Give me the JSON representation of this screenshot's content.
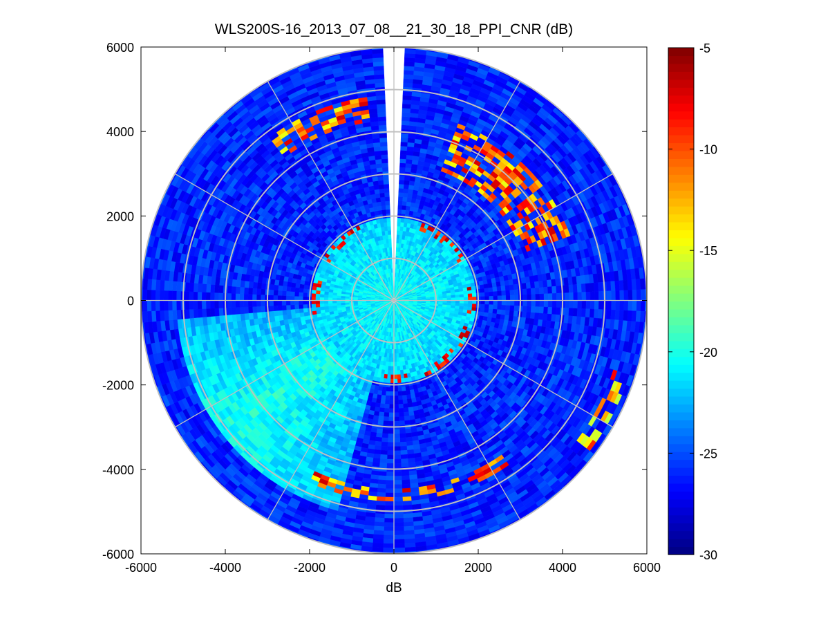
{
  "chart_data": {
    "type": "heatmap",
    "subtype": "polar-ppi-scan",
    "title": "WLS200S-16_2013_07_08__21_30_18_PPI_CNR (dB)",
    "xlabel": "dB",
    "ylabel": "",
    "xlim": [
      -6000,
      6000
    ],
    "ylim": [
      -6000,
      6000
    ],
    "x_ticks": [
      -6000,
      -4000,
      -2000,
      0,
      2000,
      4000,
      6000
    ],
    "y_ticks": [
      -6000,
      -4000,
      -2000,
      0,
      2000,
      4000,
      6000
    ],
    "x_tick_labels": [
      "-6000",
      "-4000",
      "-2000",
      "0",
      "2000",
      "4000",
      "6000"
    ],
    "y_tick_labels": [
      "-6000",
      "-4000",
      "-2000",
      "0",
      "2000",
      "4000",
      "6000"
    ],
    "max_range": 6000,
    "range_rings": [
      1000,
      2000,
      3000,
      4000,
      5000,
      6000
    ],
    "azimuth_spokes_deg": [
      0,
      30,
      60,
      90,
      120,
      150,
      180,
      210,
      240,
      270,
      300,
      330
    ],
    "gap_azimuth_deg": [
      -3.5,
      3.5
    ],
    "colormap": "jet",
    "clim": [
      -30,
      -5
    ],
    "colorbar_ticks": [
      -5,
      -10,
      -15,
      -20,
      -25,
      -30
    ],
    "colorbar_tick_labels": [
      "-5",
      "-10",
      "-15",
      "-20",
      "-25",
      "-30"
    ],
    "grid": true,
    "features": [
      {
        "name": "near-field",
        "range_km": [
          0,
          2.0
        ],
        "cnr_db": -20.5
      },
      {
        "name": "background",
        "range_km": [
          2.0,
          6.0
        ],
        "cnr_db": -26.0
      },
      {
        "name": "southwest-plume",
        "azimuth_deg": [
          195,
          265
        ],
        "range_km": [
          2.5,
          4.8
        ],
        "cnr_db": -19.0
      },
      {
        "name": "north-arc",
        "azimuth_deg": [
          322,
          352
        ],
        "range_km": [
          4.3,
          4.9
        ],
        "cnr_db": -7.0
      },
      {
        "name": "ring-2km-echoes",
        "range_km": [
          1.8,
          2.0
        ],
        "cnr_db": -6.0
      },
      {
        "name": "east-arc",
        "azimuth_deg": [
          20,
          70
        ],
        "range_km": [
          3.3,
          4.5
        ],
        "cnr_db": -7.0
      },
      {
        "name": "south-arc",
        "azimuth_deg": [
          145,
          205
        ],
        "range_km": [
          4.5,
          4.8
        ],
        "cnr_db": -6.5
      },
      {
        "name": "far-southeast-arc",
        "azimuth_deg": [
          108,
          128
        ],
        "range_km": [
          5.5,
          5.9
        ],
        "cnr_db": -8.0
      }
    ]
  },
  "colors": {
    "grid": "#c0c0c0",
    "axes": "#000000",
    "background": "#ffffff"
  }
}
